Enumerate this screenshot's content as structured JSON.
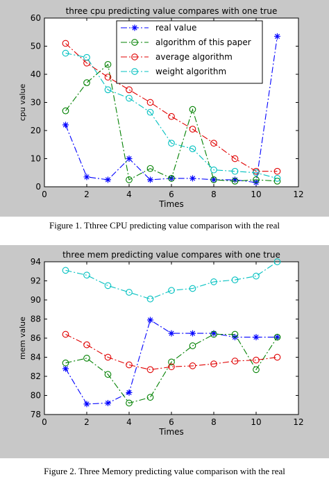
{
  "chart_data": [
    {
      "type": "line",
      "title": "three cpu predicting value compares with one true",
      "xlabel": "Times",
      "ylabel": "cpu value",
      "xlim": [
        0,
        12
      ],
      "ylim": [
        0,
        60
      ],
      "xticks": [
        "0",
        "2",
        "4",
        "6",
        "8",
        "10",
        "12"
      ],
      "yticks": [
        "0",
        "10",
        "20",
        "30",
        "40",
        "50",
        "60"
      ],
      "grid": false,
      "legend_position": "top-right",
      "x": [
        1,
        2,
        3,
        4,
        5,
        6,
        7,
        8,
        9,
        10,
        11
      ],
      "series": [
        {
          "name": "real value",
          "color": "#0000ff",
          "marker": "star",
          "dash": "dashdot",
          "values": [
            22,
            3.5,
            2.5,
            10,
            2.5,
            3,
            3,
            2.5,
            2.5,
            1.5,
            53.5
          ]
        },
        {
          "name": "algorithm of this paper",
          "color": "#008000",
          "marker": "circle",
          "dash": "dashdot",
          "values": [
            27,
            37,
            43.5,
            2.5,
            6.5,
            3,
            27.5,
            2.5,
            2,
            2.5,
            2
          ]
        },
        {
          "name": "average algorithm",
          "color": "#e00000",
          "marker": "circle",
          "dash": "dashdot",
          "values": [
            51,
            44,
            39,
            34.5,
            30,
            25,
            20.5,
            15.5,
            10,
            5.5,
            5.5
          ]
        },
        {
          "name": "weight algorithm",
          "color": "#00c0c0",
          "marker": "circle",
          "dash": "dashdot",
          "values": [
            47.5,
            46,
            34.5,
            31.5,
            26.5,
            15.5,
            13.5,
            6,
            5.5,
            5,
            3
          ]
        }
      ]
    },
    {
      "type": "line",
      "title": "three mem predicting value compares with one true",
      "xlabel": "Times",
      "ylabel": "mem value",
      "xlim": [
        0,
        12
      ],
      "ylim": [
        78,
        94
      ],
      "xticks": [
        "0",
        "2",
        "4",
        "6",
        "8",
        "10",
        "12"
      ],
      "yticks": [
        "78",
        "80",
        "82",
        "84",
        "86",
        "88",
        "90",
        "92",
        "94"
      ],
      "grid": false,
      "x": [
        1,
        2,
        3,
        4,
        5,
        6,
        7,
        8,
        9,
        10,
        11
      ],
      "series": [
        {
          "color": "#0000ff",
          "marker": "star",
          "dash": "dashdot",
          "values": [
            82.8,
            79.1,
            79.2,
            80.3,
            87.9,
            86.5,
            86.5,
            86.5,
            86.1,
            86.1,
            86.1
          ]
        },
        {
          "color": "#008000",
          "marker": "circle",
          "dash": "dashdot",
          "values": [
            83.4,
            83.9,
            82.2,
            79.2,
            79.8,
            83.5,
            85.2,
            86.4,
            86.4,
            82.7,
            86.1
          ]
        },
        {
          "color": "#e00000",
          "marker": "circle",
          "dash": "dashdot",
          "values": [
            86.4,
            85.3,
            84.0,
            83.2,
            82.7,
            83.0,
            83.1,
            83.3,
            83.6,
            83.7,
            84.0
          ]
        },
        {
          "color": "#00c0c0",
          "marker": "circle",
          "dash": "dashdot",
          "values": [
            93.1,
            92.6,
            91.5,
            90.8,
            90.1,
            91.0,
            91.2,
            91.9,
            92.1,
            92.5,
            94.0
          ]
        }
      ]
    }
  ],
  "captions": {
    "figure1": "Figure 1.    Tthree CPU predicting value comparison with the real",
    "figure2": "Figure 2.    Three Memory predicting value comparison with the real"
  }
}
